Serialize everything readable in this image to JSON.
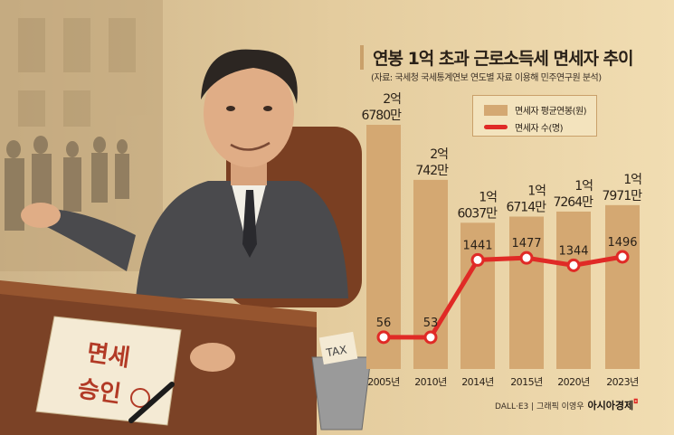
{
  "illustration": {
    "document_stamp_text": "면세 승인",
    "bin_paper_text": "TAX"
  },
  "chart_data": {
    "type": "bar+line",
    "title": "연봉 1억 초과 근로소득세 면세자 추이",
    "subtitle": "(자료: 국세청 국세통계연보 연도별 자료 이용해 민주연구원 분석)",
    "categories": [
      "2005년",
      "2010년",
      "2014년",
      "2015년",
      "2020년",
      "2023년"
    ],
    "legend_position": "top-right",
    "grid": false,
    "series": [
      {
        "name": "면세자 평균연봉(원)",
        "type": "bar",
        "color": "#d4a872",
        "values": [
          267800000,
          207420000,
          160370000,
          167140000,
          172640000,
          179710000
        ],
        "labels": [
          [
            "2억",
            "6780만"
          ],
          [
            "2억",
            "742만"
          ],
          [
            "1억",
            "6037만"
          ],
          [
            "1억",
            "6714만"
          ],
          [
            "1억",
            "7264만"
          ],
          [
            "1억",
            "7971만"
          ]
        ]
      },
      {
        "name": "면세자 수(명)",
        "type": "line",
        "color": "#e02a26",
        "values": [
          56,
          53,
          1441,
          1477,
          1344,
          1496
        ],
        "labels": [
          "56",
          "53",
          "1441",
          "1477",
          "1344",
          "1496"
        ]
      }
    ]
  },
  "footer": {
    "credit": "DALL·E3 | 그래픽 이영우",
    "brand": "아시아경제"
  }
}
